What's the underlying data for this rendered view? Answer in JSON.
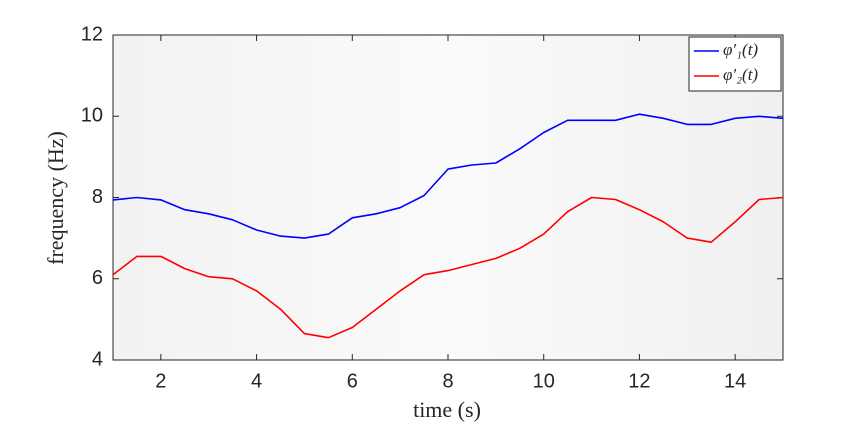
{
  "chart_data": {
    "type": "line",
    "xlabel": "time (s)",
    "ylabel": "frequency (Hz)",
    "x": [
      1,
      1.5,
      2,
      2.5,
      3,
      3.5,
      4,
      4.5,
      5,
      5.5,
      6,
      6.5,
      7,
      7.5,
      8,
      8.5,
      9,
      9.5,
      10,
      10.5,
      11,
      11.5,
      12,
      12.5,
      13,
      13.5,
      14,
      14.5,
      15
    ],
    "series": [
      {
        "name": "φ′₁(t)",
        "color": "#0000ff",
        "values": [
          7.94,
          8.0,
          7.94,
          7.7,
          7.6,
          7.45,
          7.2,
          7.05,
          7.0,
          7.1,
          7.5,
          7.6,
          7.75,
          8.05,
          8.7,
          8.8,
          8.85,
          9.2,
          9.6,
          9.9,
          9.9,
          9.9,
          10.05,
          9.95,
          9.8,
          9.8,
          9.95,
          10.0,
          9.95
        ]
      },
      {
        "name": "φ′₂(t)",
        "color": "#ff0000",
        "values": [
          6.1,
          6.55,
          6.55,
          6.25,
          6.05,
          6.0,
          5.7,
          5.25,
          4.65,
          4.55,
          4.8,
          5.25,
          5.7,
          6.1,
          6.2,
          6.35,
          6.5,
          6.75,
          7.1,
          7.65,
          8.0,
          7.95,
          7.7,
          7.4,
          7.0,
          6.9,
          7.4,
          7.95,
          8.0
        ]
      }
    ],
    "xlim": [
      1,
      15
    ],
    "xticks": [
      2,
      4,
      6,
      8,
      10,
      12,
      14
    ],
    "ylim": [
      4,
      12
    ],
    "yticks": [
      4,
      6,
      8,
      10,
      12
    ],
    "legend": "top-right"
  }
}
